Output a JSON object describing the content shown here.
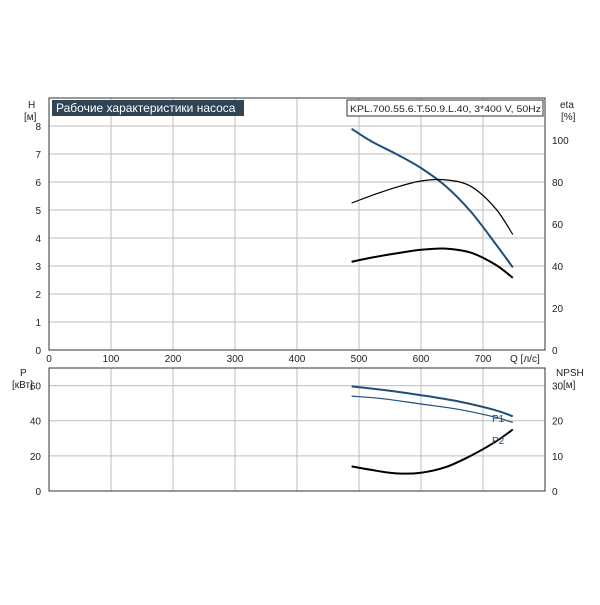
{
  "chart_data": [
    {
      "type": "line",
      "title": "Рабочие характеристики насоса",
      "subtitle": "KPL.700.55.6.T.50.9.L.40, 3*400 V, 50Hz",
      "xlabel": "Q [л/с]",
      "ylabel": "H",
      "ylabel_unit": "[м]",
      "y2label": "eta",
      "y2label_unit": "[%]",
      "xlim": [
        0,
        800
      ],
      "ylim": [
        0,
        9
      ],
      "y2lim": [
        0,
        120
      ],
      "xticks": [
        "0",
        "100",
        "200",
        "300",
        "400",
        "500",
        "600",
        "700"
      ],
      "yticks": [
        "0",
        "1",
        "2",
        "3",
        "4",
        "5",
        "6",
        "7",
        "8"
      ],
      "y2ticks": [
        "0",
        "20",
        "40",
        "60",
        "80",
        "100"
      ],
      "grid": true,
      "series": [
        {
          "axis": "left",
          "color": "#1f4e79",
          "x": [
            488,
            520,
            560,
            600,
            640,
            680,
            720,
            748
          ],
          "y": [
            7.9,
            7.45,
            7.0,
            6.5,
            5.85,
            4.95,
            3.8,
            2.95
          ]
        },
        {
          "axis": "right",
          "color": "#000000",
          "x": [
            488,
            520,
            560,
            600,
            640,
            680,
            720,
            748
          ],
          "y": [
            70,
            73.5,
            77.5,
            80.5,
            81,
            78,
            67.5,
            55
          ]
        },
        {
          "axis": "left",
          "color": "#000000",
          "x": [
            488,
            520,
            560,
            600,
            640,
            680,
            720,
            748
          ],
          "y": [
            3.15,
            3.3,
            3.45,
            3.58,
            3.62,
            3.48,
            3.05,
            2.58
          ]
        }
      ]
    },
    {
      "type": "line",
      "xlabel": "",
      "ylabel": "P",
      "ylabel_unit": "[кВт]",
      "y2label": "NPSH",
      "y2label_unit": "[м]",
      "xlim": [
        0,
        800
      ],
      "ylim": [
        0,
        70
      ],
      "y2lim": [
        0,
        35
      ],
      "yticks": [
        "0",
        "20",
        "40",
        "60"
      ],
      "y2ticks": [
        "0",
        "10",
        "20",
        "30"
      ],
      "grid": true,
      "series": [
        {
          "name": "P1",
          "axis": "left",
          "color": "#1f4e79",
          "x": [
            488,
            540,
            600,
            660,
            720,
            748
          ],
          "y": [
            59.5,
            57.5,
            54.5,
            51,
            46,
            42.5
          ]
        },
        {
          "name": "P2",
          "axis": "left",
          "color": "#1f4e79",
          "x": [
            488,
            540,
            600,
            660,
            720,
            748
          ],
          "y": [
            54,
            52.5,
            49.5,
            46.5,
            42,
            39
          ]
        },
        {
          "axis": "right",
          "color": "#000000",
          "x": [
            488,
            520,
            560,
            600,
            640,
            680,
            720,
            748
          ],
          "y": [
            7,
            6,
            5,
            5.2,
            6.8,
            10,
            14,
            17.5
          ]
        }
      ]
    }
  ]
}
